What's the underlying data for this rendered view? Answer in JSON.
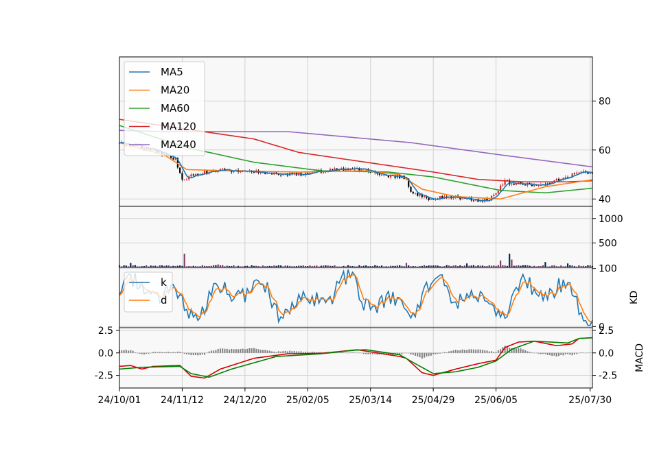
{
  "chart_data": {
    "type": "candlestick",
    "x_tick_labels": [
      "24/10/01",
      "24/11/12",
      "24/12/20",
      "25/02/05",
      "25/03/14",
      "25/04/29",
      "25/06/05",
      "25/07/30"
    ],
    "x_tick_index": [
      0,
      28,
      56,
      84,
      112,
      140,
      168,
      210
    ],
    "n_days": 212,
    "colors": {
      "up": "#d62728",
      "down": "#000000",
      "ma5": "#1f77b4",
      "ma20": "#ff7f0e",
      "ma60": "#2ca02c",
      "ma120": "#d62728",
      "ma240": "#9467bd",
      "k": "#1f77b4",
      "d": "#ff7f0e",
      "dif": "#d40000",
      "dea": "#008000",
      "hist": "#808080",
      "vol_up": "#7f3f6f",
      "vol_down": "#0b2a4a"
    },
    "panels": [
      {
        "name": "price",
        "ylim": [
          37,
          98
        ],
        "yticks": [
          40,
          60,
          80
        ],
        "legend": [
          "MA5",
          "MA20",
          "MA60",
          "MA120",
          "MA240"
        ],
        "close_keypoints": [
          [
            0,
            63
          ],
          [
            15,
            60
          ],
          [
            25,
            56
          ],
          [
            28,
            48
          ],
          [
            33,
            50
          ],
          [
            45,
            52
          ],
          [
            60,
            51
          ],
          [
            80,
            50
          ],
          [
            95,
            52
          ],
          [
            108,
            52.5
          ],
          [
            115,
            50
          ],
          [
            125,
            49
          ],
          [
            128,
            48
          ],
          [
            130,
            43
          ],
          [
            137,
            40
          ],
          [
            145,
            41
          ],
          [
            160,
            39.5
          ],
          [
            165,
            40
          ],
          [
            172,
            47
          ],
          [
            180,
            46
          ],
          [
            190,
            46
          ],
          [
            200,
            49
          ],
          [
            205,
            51
          ],
          [
            212,
            50
          ]
        ],
        "ma20_keypoints": [
          [
            0,
            63
          ],
          [
            20,
            58
          ],
          [
            30,
            52
          ],
          [
            50,
            51.5
          ],
          [
            80,
            51
          ],
          [
            110,
            51.5
          ],
          [
            125,
            50
          ],
          [
            135,
            44
          ],
          [
            150,
            41
          ],
          [
            170,
            40
          ],
          [
            190,
            45
          ],
          [
            212,
            48
          ]
        ],
        "ma60_keypoints": [
          [
            0,
            70
          ],
          [
            30,
            61
          ],
          [
            60,
            55
          ],
          [
            90,
            51.5
          ],
          [
            120,
            51
          ],
          [
            140,
            49
          ],
          [
            170,
            43.5
          ],
          [
            190,
            42.5
          ],
          [
            212,
            44.5
          ]
        ],
        "ma120_keypoints": [
          [
            0,
            72.5
          ],
          [
            30,
            68.5
          ],
          [
            60,
            64.5
          ],
          [
            80,
            59
          ],
          [
            110,
            55
          ],
          [
            140,
            51
          ],
          [
            160,
            48
          ],
          [
            180,
            47
          ],
          [
            200,
            47
          ],
          [
            212,
            47.5
          ]
        ],
        "ma240_keypoints": [
          [
            0,
            68
          ],
          [
            20,
            67.5
          ],
          [
            75,
            67.5
          ],
          [
            130,
            63
          ],
          [
            170,
            58
          ],
          [
            212,
            53
          ]
        ]
      },
      {
        "name": "volume",
        "ylim": [
          0,
          1250
        ],
        "yticks": [
          500,
          1000
        ],
        "spikes": [
          [
            5,
            90
          ],
          [
            29,
            280
          ],
          [
            44,
            60
          ],
          [
            128,
            90
          ],
          [
            155,
            80
          ],
          [
            170,
            140
          ],
          [
            174,
            280
          ],
          [
            175,
            160
          ],
          [
            190,
            110
          ],
          [
            200,
            80
          ]
        ]
      },
      {
        "name": "KD",
        "ylabel": "KD",
        "ylim": [
          -2,
          102
        ],
        "yticks": [
          0,
          100
        ],
        "legend": [
          "k",
          "d"
        ]
      },
      {
        "name": "MACD",
        "ylabel": "MACD",
        "ylim": [
          -3.9,
          2.8
        ],
        "yticks": [
          -2.5,
          0.0,
          2.5
        ],
        "dif_keypoints": [
          [
            0,
            -1.5
          ],
          [
            5,
            -1.4
          ],
          [
            10,
            -1.8
          ],
          [
            15,
            -1.5
          ],
          [
            27,
            -1.4
          ],
          [
            32,
            -2.6
          ],
          [
            38,
            -2.8
          ],
          [
            45,
            -1.8
          ],
          [
            60,
            -0.6
          ],
          [
            75,
            -0.1
          ],
          [
            90,
            -0.05
          ],
          [
            100,
            0.2
          ],
          [
            106,
            0.35
          ],
          [
            115,
            0.0
          ],
          [
            125,
            -0.4
          ],
          [
            128,
            -0.6
          ],
          [
            135,
            -2.2
          ],
          [
            140,
            -2.5
          ],
          [
            150,
            -1.8
          ],
          [
            160,
            -1.2
          ],
          [
            168,
            -0.8
          ],
          [
            172,
            0.6
          ],
          [
            178,
            1.2
          ],
          [
            185,
            1.3
          ],
          [
            195,
            0.8
          ],
          [
            202,
            1.0
          ],
          [
            205,
            1.6
          ],
          [
            212,
            1.7
          ]
        ],
        "dea_keypoints": [
          [
            0,
            -1.8
          ],
          [
            10,
            -1.6
          ],
          [
            27,
            -1.5
          ],
          [
            32,
            -2.3
          ],
          [
            40,
            -2.7
          ],
          [
            50,
            -1.8
          ],
          [
            70,
            -0.4
          ],
          [
            90,
            -0.1
          ],
          [
            105,
            0.3
          ],
          [
            110,
            0.35
          ],
          [
            125,
            -0.2
          ],
          [
            132,
            -1.2
          ],
          [
            140,
            -2.3
          ],
          [
            150,
            -2.1
          ],
          [
            160,
            -1.6
          ],
          [
            168,
            -0.9
          ],
          [
            175,
            0.4
          ],
          [
            185,
            1.3
          ],
          [
            200,
            1.1
          ],
          [
            205,
            1.6
          ],
          [
            212,
            1.7
          ]
        ]
      }
    ]
  }
}
